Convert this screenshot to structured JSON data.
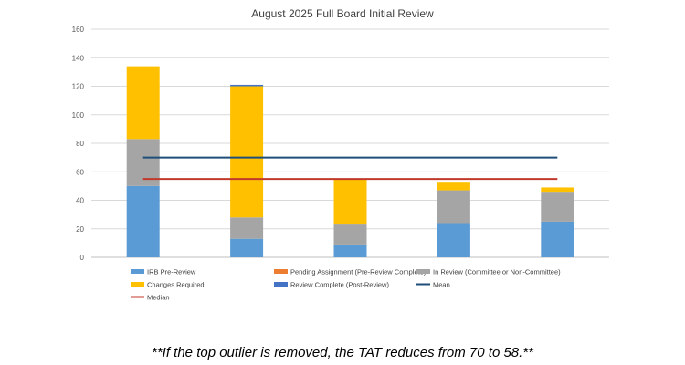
{
  "chart_data": {
    "type": "bar",
    "stacked": true,
    "title": "August 2025 Full Board Initial Review",
    "categories": [
      "",
      "",
      "",
      "",
      ""
    ],
    "ylim": [
      0,
      160
    ],
    "yticks": [
      "0",
      "20",
      "40",
      "60",
      "80",
      "100",
      "120",
      "140",
      "160"
    ],
    "grid": true,
    "series": [
      {
        "name": "IRB Pre-Review",
        "color": "#5B9BD5",
        "values": [
          50,
          13,
          9,
          24,
          25
        ]
      },
      {
        "name": "Pending Assignment (Pre-Review Complete)",
        "color": "#ED7D31",
        "values": [
          0,
          0,
          0,
          0,
          0
        ]
      },
      {
        "name": "In Review (Committee or Non-Committee)",
        "color": "#A5A5A5",
        "values": [
          33,
          15,
          14,
          23,
          21
        ]
      },
      {
        "name": "Changes Required",
        "color": "#FFC000",
        "values": [
          51,
          92,
          32,
          6,
          3
        ]
      },
      {
        "name": "Review Complete (Post-Review)",
        "color": "#4472C4",
        "values": [
          0,
          1,
          0,
          0,
          0
        ]
      }
    ],
    "lines": [
      {
        "name": "Mean",
        "color": "#1F4E79",
        "value": 70
      },
      {
        "name": "Median",
        "color": "#C0392B",
        "value": 55
      }
    ],
    "legend_position": "bottom"
  },
  "footnote": "**If the top outlier is removed, the TAT reduces from 70 to 58.**"
}
